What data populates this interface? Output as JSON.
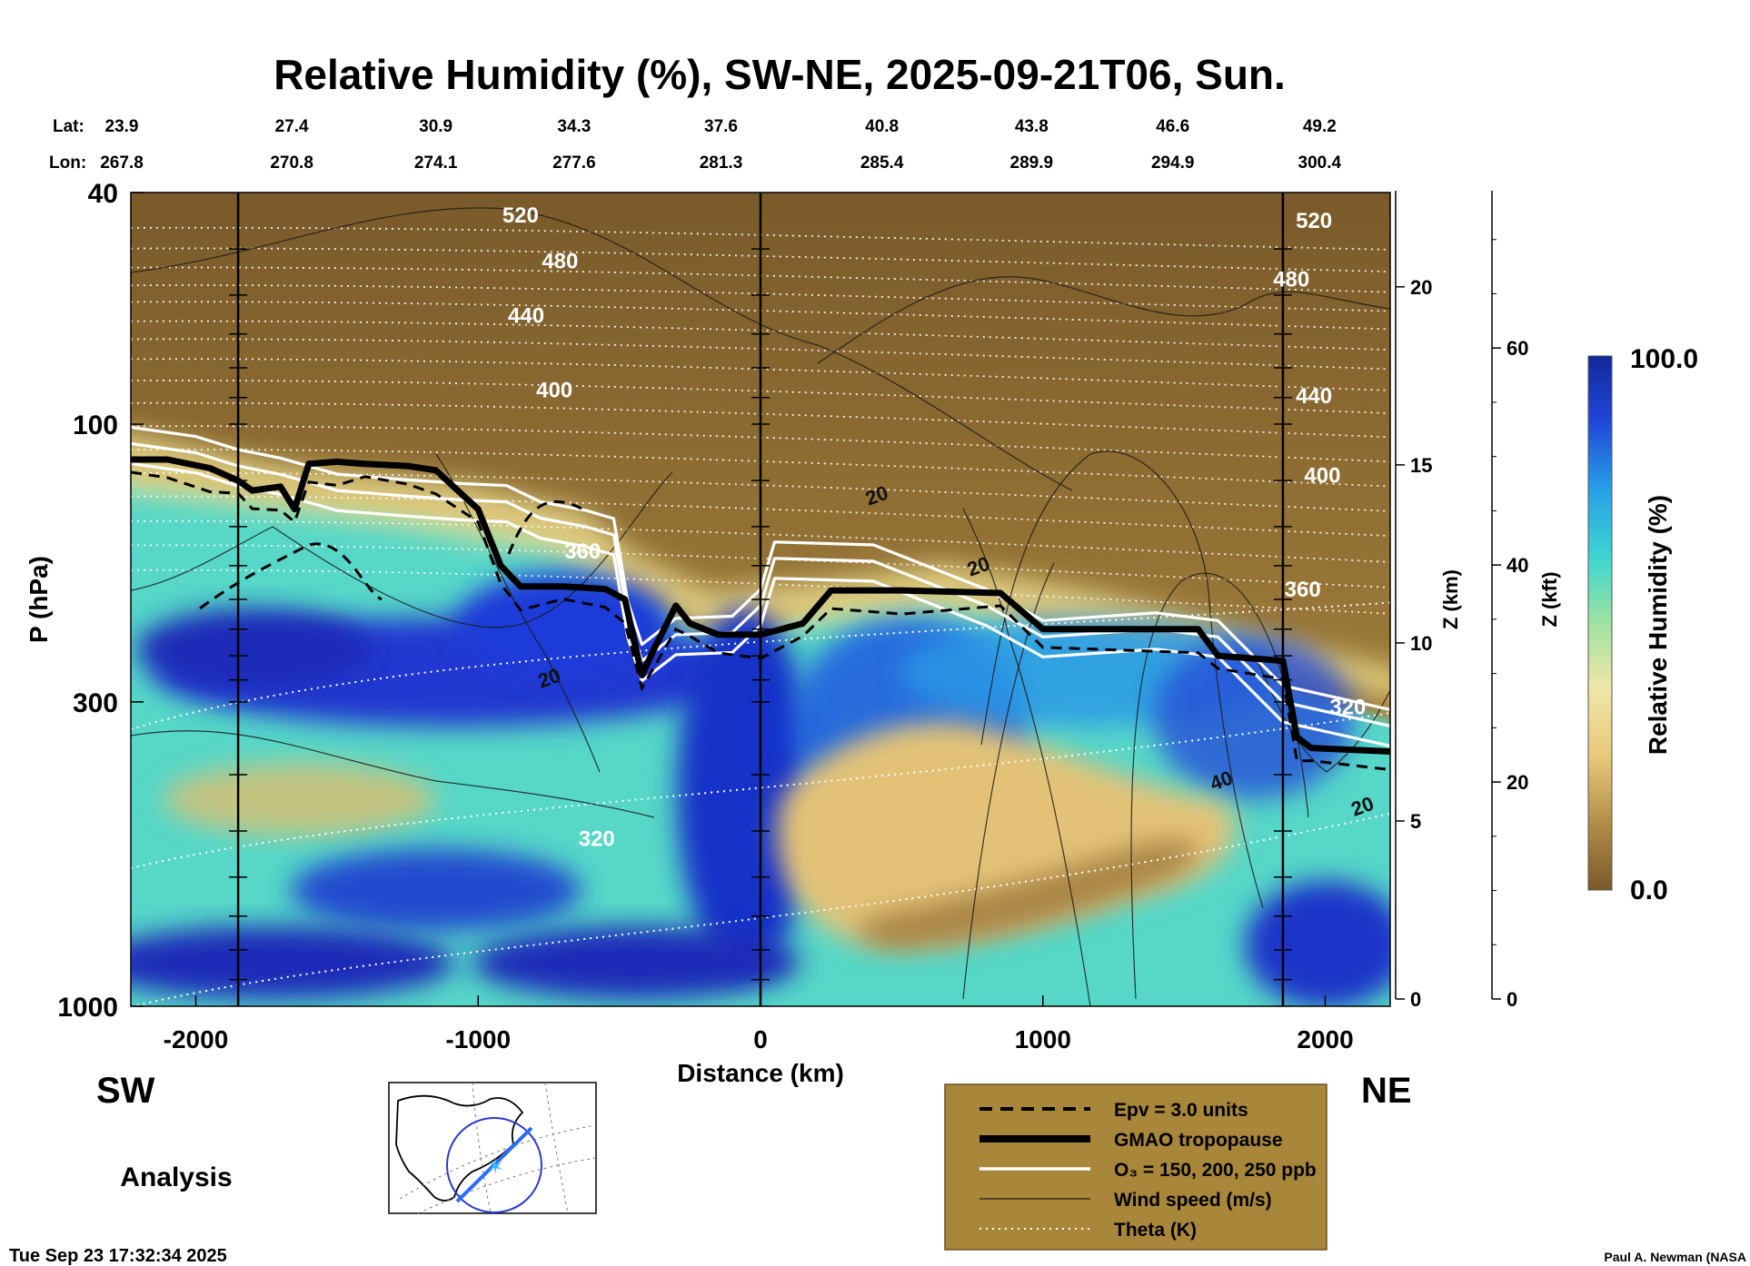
{
  "chart_data": {
    "type": "heatmap",
    "title": "Relative Humidity (%), SW-NE, 2025-09-21T06, Sun.",
    "xlabel": "Distance (km)",
    "ylabel": "P (hPa)",
    "y2label": "Z (km)",
    "y3label": "Z (kft)",
    "colorbar_label": "Relative Humidity (%)",
    "colorbar_max": "100.0",
    "colorbar_min": "0.0",
    "xlim": [
      -2230,
      2230
    ],
    "x_ticks": [
      -2000,
      -1000,
      0,
      1000,
      2000
    ],
    "y_scale": "log",
    "ylim": [
      1000,
      40
    ],
    "y_ticks": [
      40,
      100,
      300,
      1000
    ],
    "z_km_ticks": [
      0,
      5,
      10,
      15,
      20
    ],
    "z_kft_ticks": [
      0,
      20,
      40,
      60
    ],
    "lat_label": "Lat:",
    "lon_label": "Lon:",
    "lat": [
      "23.9",
      "27.4",
      "30.9",
      "34.3",
      "37.6",
      "40.8",
      "43.8",
      "46.6",
      "49.2"
    ],
    "lon": [
      "267.8",
      "270.8",
      "274.1",
      "277.6",
      "281.3",
      "285.4",
      "289.9",
      "294.9",
      "300.4"
    ],
    "lat_lon_distance_km": [
      -2210,
      -1660,
      -1150,
      -660,
      -140,
      430,
      960,
      1460,
      1980
    ],
    "vertical_lines_km": [
      -1850,
      0,
      1850
    ],
    "side_labels": {
      "left": "SW",
      "right": "NE"
    },
    "tropopause_hPa": [
      [
        -2230,
        115
      ],
      [
        -2100,
        115
      ],
      [
        -1950,
        119
      ],
      [
        -1850,
        125
      ],
      [
        -1800,
        130
      ],
      [
        -1700,
        128
      ],
      [
        -1650,
        140
      ],
      [
        -1600,
        117
      ],
      [
        -1500,
        116
      ],
      [
        -1400,
        117
      ],
      [
        -1250,
        118
      ],
      [
        -1150,
        120
      ],
      [
        -1000,
        140
      ],
      [
        -920,
        175
      ],
      [
        -850,
        190
      ],
      [
        -700,
        190
      ],
      [
        -550,
        192
      ],
      [
        -480,
        200
      ],
      [
        -420,
        270
      ],
      [
        -380,
        245
      ],
      [
        -300,
        205
      ],
      [
        -250,
        220
      ],
      [
        -150,
        230
      ],
      [
        0,
        230
      ],
      [
        150,
        220
      ],
      [
        250,
        193
      ],
      [
        500,
        193
      ],
      [
        850,
        195
      ],
      [
        1000,
        225
      ],
      [
        1550,
        225
      ],
      [
        1620,
        250
      ],
      [
        1850,
        255
      ],
      [
        1900,
        345
      ],
      [
        1950,
        360
      ],
      [
        2230,
        365
      ]
    ],
    "ozone_200ppb_hPa": [
      [
        -2230,
        108
      ],
      [
        -2000,
        112
      ],
      [
        -1850,
        118
      ],
      [
        -1700,
        122
      ],
      [
        -1500,
        130
      ],
      [
        -1250,
        133
      ],
      [
        -1050,
        135
      ],
      [
        -900,
        136
      ],
      [
        -780,
        145
      ],
      [
        -620,
        150
      ],
      [
        -520,
        155
      ],
      [
        -470,
        215
      ],
      [
        -420,
        255
      ],
      [
        -300,
        230
      ],
      [
        -100,
        228
      ],
      [
        0,
        205
      ],
      [
        50,
        170
      ],
      [
        400,
        172
      ],
      [
        800,
        205
      ],
      [
        1000,
        232
      ],
      [
        1400,
        225
      ],
      [
        1620,
        232
      ],
      [
        1850,
        300
      ],
      [
        2230,
        330
      ]
    ],
    "theta_K_labels": [
      {
        "text": "520",
        "x": -850,
        "p": 45
      },
      {
        "text": "480",
        "x": -710,
        "p": 54
      },
      {
        "text": "440",
        "x": -830,
        "p": 67
      },
      {
        "text": "400",
        "x": -730,
        "p": 90
      },
      {
        "text": "360",
        "x": -630,
        "p": 170
      },
      {
        "text": "320",
        "x": -580,
        "p": 530
      },
      {
        "text": "520",
        "x": 1960,
        "p": 46
      },
      {
        "text": "480",
        "x": 1880,
        "p": 58
      },
      {
        "text": "440",
        "x": 1960,
        "p": 92
      },
      {
        "text": "400",
        "x": 1990,
        "p": 126
      },
      {
        "text": "360",
        "x": 1920,
        "p": 198
      },
      {
        "text": "320",
        "x": 2080,
        "p": 315
      }
    ],
    "wind_labels": [
      {
        "text": "20",
        "x": 420,
        "p": 136
      },
      {
        "text": "20",
        "x": 780,
        "p": 180
      },
      {
        "text": "20",
        "x": -740,
        "p": 280
      },
      {
        "text": "40",
        "x": 1640,
        "p": 420
      },
      {
        "text": "20",
        "x": 2140,
        "p": 465
      }
    ],
    "legend": [
      {
        "label": "Epv = 3.0 units",
        "style": "dashed-black"
      },
      {
        "label": "GMAO tropopause",
        "style": "thick-black"
      },
      {
        "label": "O₃ = 150, 200, 250 ppb",
        "style": "white"
      },
      {
        "label": "Wind speed (m/s)",
        "style": "thin-black"
      },
      {
        "label": "Theta (K)",
        "style": "dotted-white"
      }
    ],
    "colors": {
      "dry": "#7a5a2a",
      "mid": "#e8c97a",
      "moist": "#1f3fd0",
      "legend_bg": "#a8863a"
    }
  },
  "footer": {
    "analysis": "Analysis",
    "timestamp": "Tue Sep 23 17:32:34 2025",
    "credit": "Paul A. Newman (NASA"
  }
}
